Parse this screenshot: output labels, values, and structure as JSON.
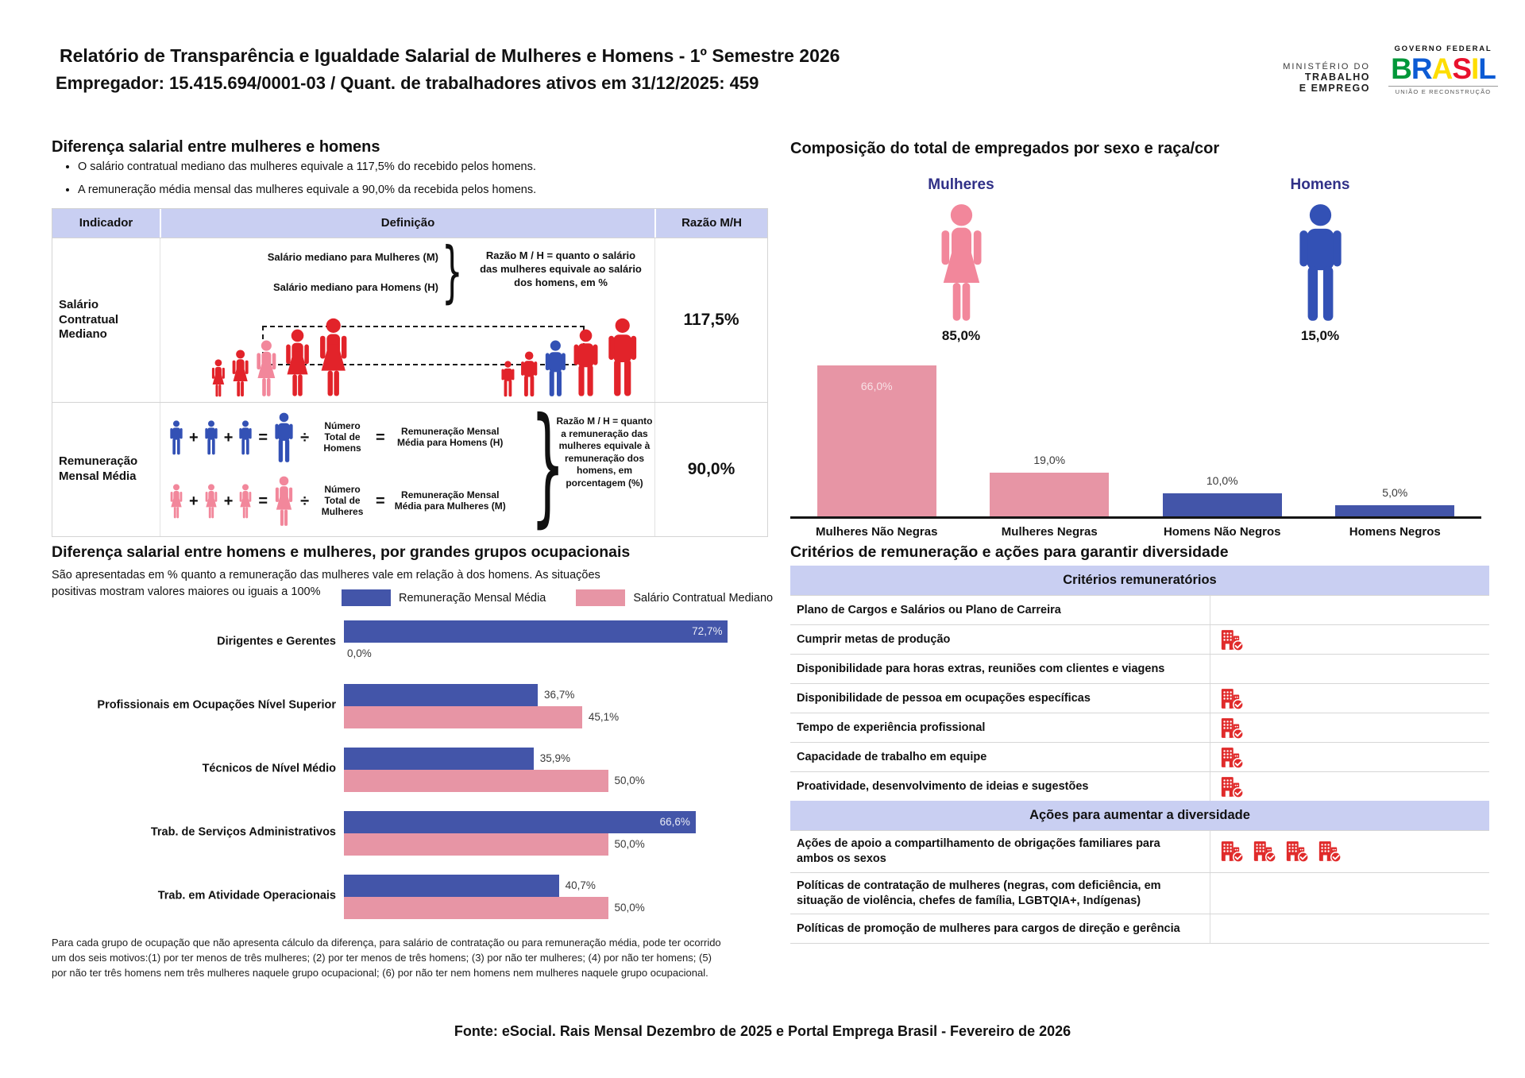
{
  "colors": {
    "red": "#e2232a",
    "pink_person": "#f2879b",
    "blue_person": "#3351b5",
    "bar_blue": "#4355a9",
    "bar_pink": "#e795a5",
    "lavender": "#c9cff2",
    "navy": "#303087",
    "icon_red": "#e02b2b"
  },
  "header": {
    "title": "Relatório de Transparência e Igualdade Salarial de Mulheres e Homens - 1º Semestre 2026",
    "subtitle": "Empregador: 15.415.694/0001-03 / Quant. de trabalhadores ativos em 31/12/2025: 459",
    "ministry": {
      "line1": "MINISTÉRIO DO",
      "line2": "TRABALHO",
      "line3": "E EMPREGO"
    },
    "gov": {
      "top": "GOVERNO FEDERAL",
      "wordmark_letters": [
        {
          "ch": "B",
          "color": "#009739"
        },
        {
          "ch": "R",
          "color": "#0d5bd4"
        },
        {
          "ch": "A",
          "color": "#fedd00"
        },
        {
          "ch": "S",
          "color": "#e8112d"
        },
        {
          "ch": "I",
          "color": "#fedd00"
        },
        {
          "ch": "L",
          "color": "#0d5bd4"
        }
      ],
      "bottom": "UNIÃO E RECONSTRUÇÃO"
    }
  },
  "ops": {
    "plus": "+",
    "equals": "=",
    "divide": "÷",
    "brace": "}"
  },
  "salary_gap": {
    "title": "Diferença salarial entre mulheres e homens",
    "bullets": [
      "O salário contratual mediano das mulheres equivale a 117,5% do recebido pelos homens.",
      "A remuneração média mensal das mulheres equivale a 90,0% da recebida pelos homens."
    ],
    "table": {
      "headers": [
        "Indicador",
        "Definição",
        "Razão M/H"
      ],
      "rows": [
        {
          "indicator": "Salário Contratual Mediano",
          "line1": "Salário mediano para Mulheres (M)",
          "line2": "Salário mediano para Homens (H)",
          "note": "Razão M / H = quanto o salário das mulheres equivale ao salário dos homens, em %",
          "ratio": "117,5%"
        },
        {
          "indicator": "Remuneração Mensal Média",
          "men": {
            "divide_label": "Número Total de Homens",
            "result_label": "Remuneração Mensal Média para Homens (H)"
          },
          "women": {
            "divide_label": "Número Total de Mulheres",
            "result_label": "Remuneração Mensal Média para Mulheres (M)"
          },
          "note": "Razão M / H = quanto a remuneração das mulheres equivale à remuneração dos homens, em porcentagem (%)",
          "ratio": "90,0%"
        }
      ]
    }
  },
  "composition": {
    "title": "Composição do total de empregados por sexo e raça/cor",
    "women_label": "Mulheres",
    "women_pct": "85,0%",
    "men_label": "Homens",
    "men_pct": "15,0%"
  },
  "chart_data": [
    {
      "id": "composition-by-race",
      "type": "bar",
      "orientation": "vertical",
      "title": "Composição do total de empregados por sexo e raça/cor",
      "categories": [
        "Mulheres Não Negras",
        "Mulheres Negras",
        "Homens Não Negros",
        "Homens Negros"
      ],
      "values": [
        66.0,
        19.0,
        10.0,
        5.0
      ],
      "value_labels": [
        "66,0%",
        "19,0%",
        "10,0%",
        "5,0%"
      ],
      "bar_colors": [
        "#e795a5",
        "#e795a5",
        "#4355a9",
        "#4355a9"
      ],
      "ylim": [
        0,
        70
      ],
      "grid": false,
      "unit": "%"
    },
    {
      "id": "occupational-gap",
      "type": "bar",
      "orientation": "horizontal",
      "title": "Diferença salarial entre homens e mulheres, por grandes grupos ocupacionais",
      "categories": [
        "Dirigentes e Gerentes",
        "Profissionais em Ocupações Nível Superior",
        "Técnicos de Nível Médio",
        "Trab. de Serviços Administrativos",
        "Trab. em Atividade Operacionais"
      ],
      "series": [
        {
          "name": "Remuneração Mensal Média",
          "color": "#4355a9",
          "values": [
            72.7,
            36.7,
            35.9,
            66.6,
            40.7
          ],
          "value_labels": [
            "72,7%",
            "36,7%",
            "35,9%",
            "66,6%",
            "40,7%"
          ]
        },
        {
          "name": "Salário Contratual Mediano",
          "color": "#e795a5",
          "values": [
            0.0,
            45.1,
            50.0,
            50.0,
            50.0
          ],
          "value_labels": [
            "0,0%",
            "45,1%",
            "50,0%",
            "50,0%",
            "50,0%"
          ]
        }
      ],
      "xlim": [
        0,
        80
      ],
      "legend_position": "top",
      "unit": "%"
    }
  ],
  "occupational": {
    "title": "Diferença salarial entre homens e mulheres, por grandes grupos ocupacionais",
    "subtitle": "São apresentadas em % quanto a remuneração das mulheres vale em relação à dos homens. As situações positivas mostram valores maiores ou iguais a 100%",
    "footnote": "Para cada grupo de ocupação que não apresenta cálculo da diferença, para salário de contratação ou para remuneração média, pode ter ocorrido um dos seis motivos:(1) por ter menos de três mulheres; (2) por ter menos de três homens; (3) por não ter mulheres; (4) por não ter homens; (5) por não ter três homens nem três mulheres naquele grupo ocupacional; (6) por não ter nem homens nem mulheres naquele grupo ocupacional."
  },
  "criteria": {
    "title": "Critérios de remuneração e ações para garantir diversidade",
    "section1": {
      "header": "Critérios remuneratórios",
      "rows": [
        {
          "label": "Plano de Cargos e Salários ou Plano de Carreira",
          "icon_count": 0
        },
        {
          "label": "Cumprir metas de produção",
          "icon_count": 1
        },
        {
          "label": "Disponibilidade para horas extras, reuniões com clientes e viagens",
          "icon_count": 0
        },
        {
          "label": "Disponibilidade de pessoa em ocupações específicas",
          "icon_count": 1
        },
        {
          "label": "Tempo de experiência profissional",
          "icon_count": 1
        },
        {
          "label": "Capacidade de trabalho em equipe",
          "icon_count": 1
        },
        {
          "label": "Proatividade, desenvolvimento de ideias e sugestões",
          "icon_count": 1
        }
      ]
    },
    "section2": {
      "header": "Ações para aumentar a diversidade",
      "rows": [
        {
          "label": "Ações de apoio a compartilhamento de obrigações familiares para ambos os sexos",
          "icon_count": 4
        },
        {
          "label": "Políticas de contratação de mulheres (negras, com deficiência, em situação de violência, chefes de família, LGBTQIA+, Indígenas)",
          "icon_count": 0
        },
        {
          "label": "Políticas de promoção de mulheres para cargos de direção e gerência",
          "icon_count": 0
        }
      ]
    }
  },
  "footer": "Fonte: eSocial. Rais Mensal Dezembro de 2025 e Portal Emprega Brasil - Fevereiro de 2026"
}
